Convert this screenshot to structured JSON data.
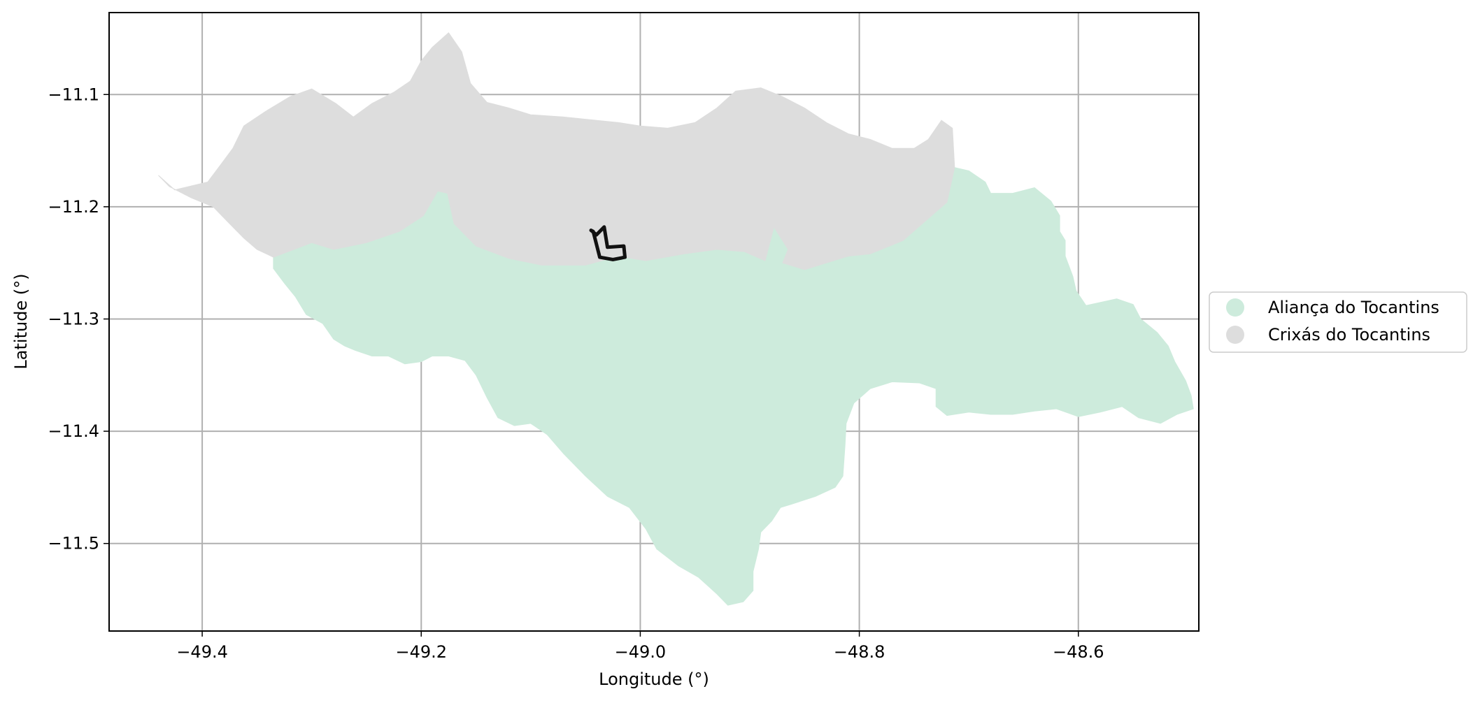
{
  "figure": {
    "xlabel": "Longitude (°)",
    "ylabel": "Latitude (°)"
  },
  "colors": {
    "alianca": "#cdebdc",
    "crixas": "#dddddd",
    "outline": "#111111",
    "grid": "#b0b0b0"
  },
  "legend": {
    "placement": "right-center",
    "items": [
      {
        "label": "Aliança do Tocantins",
        "color": "#cdebdc"
      },
      {
        "label": "Crixás do Tocantins",
        "color": "#dddddd"
      }
    ]
  },
  "chart_data": {
    "type": "map",
    "xlim": [
      -49.485,
      -48.49
    ],
    "ylim": [
      -11.578,
      -11.027
    ],
    "grid": true,
    "xticks": [
      {
        "value": -49.4,
        "label": "−49.4"
      },
      {
        "value": -49.2,
        "label": "−49.2"
      },
      {
        "value": -49.0,
        "label": "−49.0"
      },
      {
        "value": -48.8,
        "label": "−48.8"
      },
      {
        "value": -48.6,
        "label": "−48.6"
      }
    ],
    "yticks": [
      {
        "value": -11.1,
        "label": "−11.1"
      },
      {
        "value": -11.2,
        "label": "−11.2"
      },
      {
        "value": -11.3,
        "label": "−11.3"
      },
      {
        "value": -11.4,
        "label": "−11.4"
      },
      {
        "value": -11.5,
        "label": "−11.5"
      }
    ],
    "regions": [
      {
        "name": "Aliança do Tocantins",
        "color": "#cdebdc",
        "coords": [
          [
            -49.335,
            -11.245
          ],
          [
            -49.3,
            -11.232
          ],
          [
            -49.28,
            -11.238
          ],
          [
            -49.25,
            -11.232
          ],
          [
            -49.22,
            -11.222
          ],
          [
            -49.198,
            -11.208
          ],
          [
            -49.185,
            -11.186
          ],
          [
            -49.176,
            -11.188
          ],
          [
            -49.17,
            -11.215
          ],
          [
            -49.15,
            -11.235
          ],
          [
            -49.12,
            -11.246
          ],
          [
            -49.09,
            -11.252
          ],
          [
            -49.05,
            -11.252
          ],
          [
            -49.02,
            -11.244
          ],
          [
            -48.995,
            -11.248
          ],
          [
            -48.96,
            -11.242
          ],
          [
            -48.93,
            -11.238
          ],
          [
            -48.905,
            -11.24
          ],
          [
            -48.886,
            -11.248
          ],
          [
            -48.878,
            -11.218
          ],
          [
            -48.865,
            -11.238
          ],
          [
            -48.87,
            -11.25
          ],
          [
            -48.85,
            -11.256
          ],
          [
            -48.83,
            -11.25
          ],
          [
            -48.81,
            -11.244
          ],
          [
            -48.79,
            -11.242
          ],
          [
            -48.76,
            -11.23
          ],
          [
            -48.74,
            -11.213
          ],
          [
            -48.72,
            -11.196
          ],
          [
            -48.713,
            -11.165
          ],
          [
            -48.7,
            -11.168
          ],
          [
            -48.685,
            -11.178
          ],
          [
            -48.68,
            -11.188
          ],
          [
            -48.66,
            -11.188
          ],
          [
            -48.64,
            -11.183
          ],
          [
            -48.625,
            -11.195
          ],
          [
            -48.617,
            -11.208
          ],
          [
            -48.617,
            -11.222
          ],
          [
            -48.612,
            -11.23
          ],
          [
            -48.612,
            -11.244
          ],
          [
            -48.605,
            -11.262
          ],
          [
            -48.602,
            -11.275
          ],
          [
            -48.593,
            -11.288
          ],
          [
            -48.565,
            -11.282
          ],
          [
            -48.55,
            -11.287
          ],
          [
            -48.543,
            -11.3
          ],
          [
            -48.528,
            -11.312
          ],
          [
            -48.518,
            -11.324
          ],
          [
            -48.512,
            -11.338
          ],
          [
            -48.502,
            -11.355
          ],
          [
            -48.497,
            -11.368
          ],
          [
            -48.495,
            -11.38
          ],
          [
            -48.51,
            -11.385
          ],
          [
            -48.525,
            -11.393
          ],
          [
            -48.545,
            -11.388
          ],
          [
            -48.56,
            -11.378
          ],
          [
            -48.58,
            -11.383
          ],
          [
            -48.6,
            -11.387
          ],
          [
            -48.62,
            -11.38
          ],
          [
            -48.64,
            -11.382
          ],
          [
            -48.66,
            -11.385
          ],
          [
            -48.68,
            -11.385
          ],
          [
            -48.7,
            -11.383
          ],
          [
            -48.72,
            -11.386
          ],
          [
            -48.73,
            -11.378
          ],
          [
            -48.73,
            -11.362
          ],
          [
            -48.745,
            -11.357
          ],
          [
            -48.77,
            -11.356
          ],
          [
            -48.79,
            -11.362
          ],
          [
            -48.805,
            -11.375
          ],
          [
            -48.812,
            -11.393
          ],
          [
            -48.813,
            -11.412
          ],
          [
            -48.815,
            -11.44
          ],
          [
            -48.822,
            -11.45
          ],
          [
            -48.84,
            -11.458
          ],
          [
            -48.862,
            -11.465
          ],
          [
            -48.872,
            -11.468
          ],
          [
            -48.88,
            -11.48
          ],
          [
            -48.89,
            -11.49
          ],
          [
            -48.892,
            -11.505
          ],
          [
            -48.897,
            -11.525
          ],
          [
            -48.897,
            -11.542
          ],
          [
            -48.906,
            -11.552
          ],
          [
            -48.92,
            -11.555
          ],
          [
            -48.93,
            -11.545
          ],
          [
            -48.947,
            -11.53
          ],
          [
            -48.965,
            -11.52
          ],
          [
            -48.985,
            -11.505
          ],
          [
            -48.995,
            -11.487
          ],
          [
            -49.01,
            -11.468
          ],
          [
            -49.03,
            -11.458
          ],
          [
            -49.05,
            -11.44
          ],
          [
            -49.07,
            -11.42
          ],
          [
            -49.085,
            -11.403
          ],
          [
            -49.1,
            -11.393
          ],
          [
            -49.115,
            -11.395
          ],
          [
            -49.13,
            -11.388
          ],
          [
            -49.14,
            -11.37
          ],
          [
            -49.15,
            -11.35
          ],
          [
            -49.16,
            -11.337
          ],
          [
            -49.175,
            -11.333
          ],
          [
            -49.19,
            -11.333
          ],
          [
            -49.2,
            -11.338
          ],
          [
            -49.215,
            -11.34
          ],
          [
            -49.23,
            -11.333
          ],
          [
            -49.245,
            -11.333
          ],
          [
            -49.26,
            -11.328
          ],
          [
            -49.27,
            -11.324
          ],
          [
            -49.28,
            -11.318
          ],
          [
            -49.29,
            -11.304
          ],
          [
            -49.305,
            -11.296
          ],
          [
            -49.315,
            -11.28
          ],
          [
            -49.325,
            -11.268
          ],
          [
            -49.335,
            -11.255
          ]
        ]
      },
      {
        "name": "Crixás do Tocantins",
        "color": "#dddddd",
        "coords": [
          [
            -49.44,
            -11.172
          ],
          [
            -49.425,
            -11.185
          ],
          [
            -49.395,
            -11.178
          ],
          [
            -49.385,
            -11.165
          ],
          [
            -49.372,
            -11.148
          ],
          [
            -49.362,
            -11.128
          ],
          [
            -49.342,
            -11.115
          ],
          [
            -49.32,
            -11.102
          ],
          [
            -49.3,
            -11.095
          ],
          [
            -49.278,
            -11.108
          ],
          [
            -49.262,
            -11.12
          ],
          [
            -49.245,
            -11.108
          ],
          [
            -49.225,
            -11.098
          ],
          [
            -49.21,
            -11.088
          ],
          [
            -49.2,
            -11.07
          ],
          [
            -49.19,
            -11.058
          ],
          [
            -49.175,
            -11.045
          ],
          [
            -49.163,
            -11.062
          ],
          [
            -49.155,
            -11.09
          ],
          [
            -49.14,
            -11.107
          ],
          [
            -49.12,
            -11.112
          ],
          [
            -49.1,
            -11.118
          ],
          [
            -49.07,
            -11.12
          ],
          [
            -49.05,
            -11.122
          ],
          [
            -49.02,
            -11.125
          ],
          [
            -49.0,
            -11.128
          ],
          [
            -48.975,
            -11.13
          ],
          [
            -48.95,
            -11.125
          ],
          [
            -48.93,
            -11.112
          ],
          [
            -48.913,
            -11.097
          ],
          [
            -48.89,
            -11.094
          ],
          [
            -48.87,
            -11.102
          ],
          [
            -48.85,
            -11.112
          ],
          [
            -48.83,
            -11.125
          ],
          [
            -48.81,
            -11.135
          ],
          [
            -48.79,
            -11.14
          ],
          [
            -48.77,
            -11.148
          ],
          [
            -48.75,
            -11.148
          ],
          [
            -48.737,
            -11.14
          ],
          [
            -48.725,
            -11.123
          ],
          [
            -48.715,
            -11.13
          ],
          [
            -48.713,
            -11.165
          ],
          [
            -48.72,
            -11.196
          ],
          [
            -48.74,
            -11.213
          ],
          [
            -48.76,
            -11.23
          ],
          [
            -48.79,
            -11.242
          ],
          [
            -48.81,
            -11.244
          ],
          [
            -48.83,
            -11.25
          ],
          [
            -48.85,
            -11.256
          ],
          [
            -48.87,
            -11.25
          ],
          [
            -48.865,
            -11.238
          ],
          [
            -48.878,
            -11.218
          ],
          [
            -48.886,
            -11.248
          ],
          [
            -48.905,
            -11.24
          ],
          [
            -48.93,
            -11.238
          ],
          [
            -48.96,
            -11.242
          ],
          [
            -48.995,
            -11.248
          ],
          [
            -49.02,
            -11.244
          ],
          [
            -49.05,
            -11.252
          ],
          [
            -49.09,
            -11.252
          ],
          [
            -49.12,
            -11.246
          ],
          [
            -49.15,
            -11.235
          ],
          [
            -49.17,
            -11.215
          ],
          [
            -49.176,
            -11.188
          ],
          [
            -49.185,
            -11.186
          ],
          [
            -49.198,
            -11.208
          ],
          [
            -49.22,
            -11.222
          ],
          [
            -49.25,
            -11.232
          ],
          [
            -49.28,
            -11.238
          ],
          [
            -49.3,
            -11.232
          ],
          [
            -49.335,
            -11.245
          ],
          [
            -49.35,
            -11.238
          ],
          [
            -49.362,
            -11.228
          ],
          [
            -49.375,
            -11.215
          ],
          [
            -49.39,
            -11.2
          ],
          [
            -49.41,
            -11.192
          ],
          [
            -49.43,
            -11.182
          ]
        ]
      }
    ],
    "highlight": {
      "coords": [
        [
          -49.043,
          -11.222
        ],
        [
          -49.037,
          -11.245
        ],
        [
          -49.025,
          -11.247
        ],
        [
          -49.014,
          -11.245
        ],
        [
          -49.015,
          -11.235
        ],
        [
          -49.03,
          -11.236
        ],
        [
          -49.033,
          -11.218
        ],
        [
          -49.04,
          -11.225
        ],
        [
          -49.045,
          -11.221
        ]
      ]
    }
  }
}
